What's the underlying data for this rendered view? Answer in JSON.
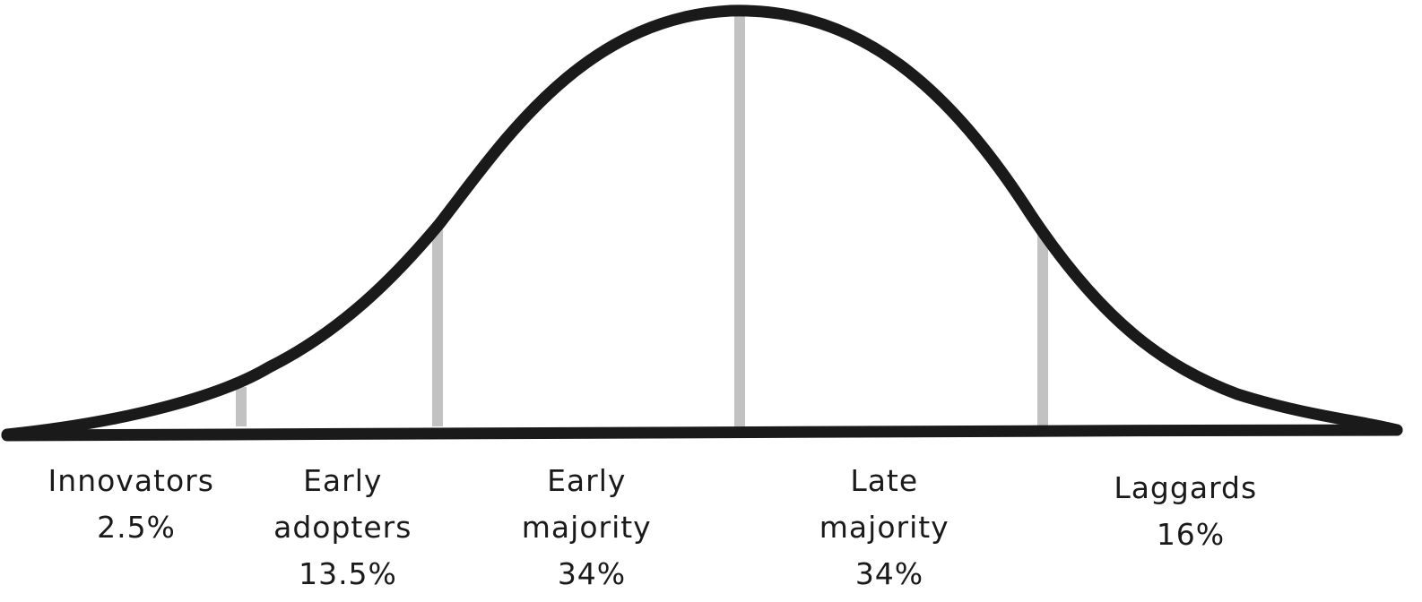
{
  "colors": {
    "curve": "#1a1a1a",
    "divider": "#c2c2c2",
    "text": "#1a1a1a",
    "background": "#ffffff"
  },
  "segments": [
    {
      "lines": [
        "Innovators",
        "2.5%"
      ],
      "percent": 2.5
    },
    {
      "lines": [
        "Early",
        "adopters",
        "13.5%"
      ],
      "percent": 13.5
    },
    {
      "lines": [
        "Early",
        "majority",
        "34%"
      ],
      "percent": 34
    },
    {
      "lines": [
        "Late",
        "majority",
        "34%"
      ],
      "percent": 34
    },
    {
      "lines": [
        "Laggards",
        "16%"
      ],
      "percent": 16
    }
  ]
}
